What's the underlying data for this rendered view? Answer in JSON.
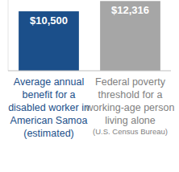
{
  "chart_data": {
    "type": "bar",
    "categories": [
      "Average annual benefit for a disabled worker in American Samoa (estimated)",
      "Federal poverty threshold for a working-age person living alone"
    ],
    "values": [
      10500,
      12316
    ],
    "value_labels": [
      "$10,500",
      "$12,316"
    ],
    "colors": [
      "#1b4f8a",
      "#a6a6a6"
    ],
    "annotations": [
      "(U.S. Census Bureau)"
    ],
    "ylim": [
      0,
      12500
    ],
    "yticks": [
      0
    ],
    "grid": false,
    "data_labels": true,
    "tick_labels": false
  }
}
